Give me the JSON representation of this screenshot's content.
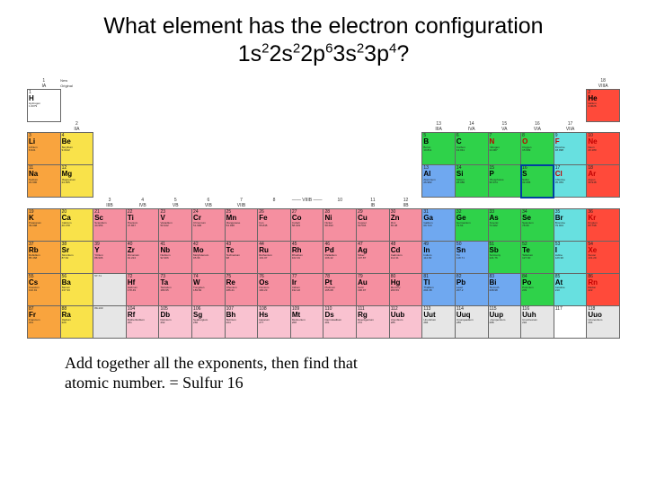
{
  "title_parts": {
    "line1": "What element has the electron configuration",
    "config": [
      {
        "b": "1s",
        "s": "2"
      },
      {
        "b": "2s",
        "s": "2"
      },
      {
        "b": "2p",
        "s": "6"
      },
      {
        "b": "3s",
        "s": "2"
      },
      {
        "b": "3p",
        "s": "4"
      },
      {
        "b": "?",
        "s": ""
      }
    ]
  },
  "answer": {
    "line1": "Add together all the exponents, then find that",
    "line2": "atomic number. = Sulfur 16"
  },
  "colors": {
    "orange": "#f9a43e",
    "yellow": "#f9e24a",
    "pink": "#f58fa0",
    "green": "#2fd24a",
    "cyan": "#67e0e0",
    "red": "#ff4a3a",
    "blue": "#6fa8f0",
    "white": "#ffffff",
    "grey": "#e6e6e6",
    "lpink": "#f9c2d0"
  },
  "group_top_labels": [
    "1\nIA",
    "",
    "",
    "",
    "",
    "",
    "",
    "",
    "",
    "",
    "",
    "",
    "",
    "",
    "",
    "",
    "",
    "18\nVIIIA"
  ],
  "group_mid_labels": {
    "row2": {
      "2": "2\nIIA",
      "13": "13\nIIIA",
      "14": "14\nIVA",
      "15": "15\nVA",
      "16": "16\nVIA",
      "17": "17\nVIIA"
    },
    "row4": {
      "3": "3\nIIIB",
      "4": "4\nIVB",
      "5": "5\nVB",
      "6": "6\nVIB",
      "7": "7\nVIIB",
      "8": "8",
      "9": "—— VIIIB ——",
      "10": "10",
      "11": "11\nIB",
      "12": "12\nIIB"
    }
  },
  "legend": {
    "new": "New",
    "orig": "Original"
  },
  "elements": {
    "r1": [
      {
        "n": "1",
        "sym": "H",
        "name": "Hydrogen",
        "mass": "1.0079",
        "c": "white"
      },
      null,
      null,
      null,
      null,
      null,
      null,
      null,
      null,
      null,
      null,
      null,
      null,
      null,
      null,
      null,
      null,
      {
        "n": "2",
        "sym": "He",
        "name": "Helium",
        "mass": "4.0026",
        "c": "red"
      }
    ],
    "r2": [
      {
        "n": "3",
        "sym": "Li",
        "name": "Lithium",
        "mass": "6.941",
        "c": "orange"
      },
      {
        "n": "4",
        "sym": "Be",
        "name": "Beryllium",
        "mass": "9.0122",
        "c": "yellow"
      },
      null,
      null,
      null,
      null,
      null,
      null,
      null,
      null,
      null,
      null,
      {
        "n": "5",
        "sym": "B",
        "name": "Boron",
        "mass": "10.811",
        "c": "green"
      },
      {
        "n": "6",
        "sym": "C",
        "name": "Carbon",
        "mass": "12.011",
        "c": "green"
      },
      {
        "n": "7",
        "sym": "N",
        "name": "Nitrogen",
        "mass": "14.007",
        "c": "green",
        "tx": "red"
      },
      {
        "n": "8",
        "sym": "O",
        "name": "Oxygen",
        "mass": "15.999",
        "c": "green",
        "tx": "red"
      },
      {
        "n": "9",
        "sym": "F",
        "name": "Fluorine",
        "mass": "18.998",
        "c": "cyan",
        "tx": "red"
      },
      {
        "n": "10",
        "sym": "Ne",
        "name": "Neon",
        "mass": "20.180",
        "c": "red",
        "tx": "red"
      }
    ],
    "r3": [
      {
        "n": "11",
        "sym": "Na",
        "name": "Sodium",
        "mass": "22.990",
        "c": "orange"
      },
      {
        "n": "12",
        "sym": "Mg",
        "name": "Magnesium",
        "mass": "24.305",
        "c": "yellow"
      },
      null,
      null,
      null,
      null,
      null,
      null,
      null,
      null,
      null,
      null,
      {
        "n": "13",
        "sym": "Al",
        "name": "Aluminum",
        "mass": "26.982",
        "c": "blue"
      },
      {
        "n": "14",
        "sym": "Si",
        "name": "Silicon",
        "mass": "28.086",
        "c": "green"
      },
      {
        "n": "15",
        "sym": "P",
        "name": "Phosphorus",
        "mass": "30.974",
        "c": "green"
      },
      {
        "n": "16",
        "sym": "S",
        "name": "Sulfur",
        "mass": "32.065",
        "c": "green",
        "hl": true
      },
      {
        "n": "17",
        "sym": "Cl",
        "name": "Chlorine",
        "mass": "35.453",
        "c": "cyan",
        "tx": "red"
      },
      {
        "n": "18",
        "sym": "Ar",
        "name": "Argon",
        "mass": "39.948",
        "c": "red",
        "tx": "red"
      }
    ],
    "r4": [
      {
        "n": "19",
        "sym": "K",
        "name": "Potassium",
        "mass": "39.098",
        "c": "orange"
      },
      {
        "n": "20",
        "sym": "Ca",
        "name": "Calcium",
        "mass": "40.078",
        "c": "yellow"
      },
      {
        "n": "21",
        "sym": "Sc",
        "name": "Scandium",
        "mass": "44.956",
        "c": "pink"
      },
      {
        "n": "22",
        "sym": "Ti",
        "name": "Titanium",
        "mass": "47.867",
        "c": "pink"
      },
      {
        "n": "23",
        "sym": "V",
        "name": "Vanadium",
        "mass": "50.942",
        "c": "pink"
      },
      {
        "n": "24",
        "sym": "Cr",
        "name": "Chromium",
        "mass": "51.996",
        "c": "pink"
      },
      {
        "n": "25",
        "sym": "Mn",
        "name": "Manganese",
        "mass": "54.938",
        "c": "pink"
      },
      {
        "n": "26",
        "sym": "Fe",
        "name": "Iron",
        "mass": "55.845",
        "c": "pink"
      },
      {
        "n": "27",
        "sym": "Co",
        "name": "Cobalt",
        "mass": "58.933",
        "c": "pink"
      },
      {
        "n": "28",
        "sym": "Ni",
        "name": "Nickel",
        "mass": "58.693",
        "c": "pink"
      },
      {
        "n": "29",
        "sym": "Cu",
        "name": "Copper",
        "mass": "63.546",
        "c": "pink"
      },
      {
        "n": "30",
        "sym": "Zn",
        "name": "Zinc",
        "mass": "65.38",
        "c": "pink"
      },
      {
        "n": "31",
        "sym": "Ga",
        "name": "Gallium",
        "mass": "69.723",
        "c": "blue"
      },
      {
        "n": "32",
        "sym": "Ge",
        "name": "Germanium",
        "mass": "72.64",
        "c": "green"
      },
      {
        "n": "33",
        "sym": "As",
        "name": "Arsenic",
        "mass": "74.922",
        "c": "green"
      },
      {
        "n": "34",
        "sym": "Se",
        "name": "Selenium",
        "mass": "78.96",
        "c": "green"
      },
      {
        "n": "35",
        "sym": "Br",
        "name": "Bromine",
        "mass": "79.904",
        "c": "cyan"
      },
      {
        "n": "36",
        "sym": "Kr",
        "name": "Krypton",
        "mass": "83.798",
        "c": "red",
        "tx": "red"
      }
    ],
    "r5": [
      {
        "n": "37",
        "sym": "Rb",
        "name": "Rubidium",
        "mass": "85.468",
        "c": "orange"
      },
      {
        "n": "38",
        "sym": "Sr",
        "name": "Strontium",
        "mass": "87.62",
        "c": "yellow"
      },
      {
        "n": "39",
        "sym": "Y",
        "name": "Yttrium",
        "mass": "88.906",
        "c": "pink"
      },
      {
        "n": "40",
        "sym": "Zr",
        "name": "Zirconium",
        "mass": "91.224",
        "c": "pink"
      },
      {
        "n": "41",
        "sym": "Nb",
        "name": "Niobium",
        "mass": "92.906",
        "c": "pink"
      },
      {
        "n": "42",
        "sym": "Mo",
        "name": "Molybdenum",
        "mass": "95.96",
        "c": "pink"
      },
      {
        "n": "43",
        "sym": "Tc",
        "name": "Technetium",
        "mass": "98",
        "c": "pink"
      },
      {
        "n": "44",
        "sym": "Ru",
        "name": "Ruthenium",
        "mass": "101.07",
        "c": "pink"
      },
      {
        "n": "45",
        "sym": "Rh",
        "name": "Rhodium",
        "mass": "102.91",
        "c": "pink"
      },
      {
        "n": "46",
        "sym": "Pd",
        "name": "Palladium",
        "mass": "106.42",
        "c": "pink"
      },
      {
        "n": "47",
        "sym": "Ag",
        "name": "Silver",
        "mass": "107.87",
        "c": "pink"
      },
      {
        "n": "48",
        "sym": "Cd",
        "name": "Cadmium",
        "mass": "112.41",
        "c": "pink"
      },
      {
        "n": "49",
        "sym": "In",
        "name": "Indium",
        "mass": "114.82",
        "c": "blue"
      },
      {
        "n": "50",
        "sym": "Sn",
        "name": "Tin",
        "mass": "118.71",
        "c": "blue"
      },
      {
        "n": "51",
        "sym": "Sb",
        "name": "Antimony",
        "mass": "121.76",
        "c": "green"
      },
      {
        "n": "52",
        "sym": "Te",
        "name": "Tellurium",
        "mass": "127.60",
        "c": "green"
      },
      {
        "n": "53",
        "sym": "I",
        "name": "Iodine",
        "mass": "126.90",
        "c": "cyan"
      },
      {
        "n": "54",
        "sym": "Xe",
        "name": "Xenon",
        "mass": "131.29",
        "c": "red",
        "tx": "red"
      }
    ],
    "r6": [
      {
        "n": "55",
        "sym": "Cs",
        "name": "Caesium",
        "mass": "132.91",
        "c": "orange"
      },
      {
        "n": "56",
        "sym": "Ba",
        "name": "Barium",
        "mass": "137.33",
        "c": "yellow"
      },
      {
        "n": "",
        "sym": "",
        "name": "57-71",
        "mass": "",
        "c": "grey"
      },
      {
        "n": "72",
        "sym": "Hf",
        "name": "Hafnium",
        "mass": "178.49",
        "c": "pink"
      },
      {
        "n": "73",
        "sym": "Ta",
        "name": "Tantalum",
        "mass": "180.95",
        "c": "pink"
      },
      {
        "n": "74",
        "sym": "W",
        "name": "Tungsten",
        "mass": "183.84",
        "c": "pink"
      },
      {
        "n": "75",
        "sym": "Re",
        "name": "Rhenium",
        "mass": "186.21",
        "c": "pink"
      },
      {
        "n": "76",
        "sym": "Os",
        "name": "Osmium",
        "mass": "190.23",
        "c": "pink"
      },
      {
        "n": "77",
        "sym": "Ir",
        "name": "Iridium",
        "mass": "192.22",
        "c": "pink"
      },
      {
        "n": "78",
        "sym": "Pt",
        "name": "Platinum",
        "mass": "195.08",
        "c": "pink"
      },
      {
        "n": "79",
        "sym": "Au",
        "name": "Gold",
        "mass": "196.97",
        "c": "pink"
      },
      {
        "n": "80",
        "sym": "Hg",
        "name": "Mercury",
        "mass": "200.59",
        "c": "pink"
      },
      {
        "n": "81",
        "sym": "Tl",
        "name": "Thallium",
        "mass": "204.38",
        "c": "blue"
      },
      {
        "n": "82",
        "sym": "Pb",
        "name": "Lead",
        "mass": "207.2",
        "c": "blue"
      },
      {
        "n": "83",
        "sym": "Bi",
        "name": "Bismuth",
        "mass": "208.98",
        "c": "blue"
      },
      {
        "n": "84",
        "sym": "Po",
        "name": "Polonium",
        "mass": "209",
        "c": "green"
      },
      {
        "n": "85",
        "sym": "At",
        "name": "Astatine",
        "mass": "210",
        "c": "cyan"
      },
      {
        "n": "86",
        "sym": "Rn",
        "name": "Radon",
        "mass": "222",
        "c": "red",
        "tx": "red"
      }
    ],
    "r7": [
      {
        "n": "87",
        "sym": "Fr",
        "name": "Francium",
        "mass": "223",
        "c": "orange"
      },
      {
        "n": "88",
        "sym": "Ra",
        "name": "Radium",
        "mass": "226",
        "c": "yellow"
      },
      {
        "n": "",
        "sym": "",
        "name": "89-103",
        "mass": "",
        "c": "grey"
      },
      {
        "n": "104",
        "sym": "Rf",
        "name": "Rutherfordium",
        "mass": "261",
        "c": "lpink"
      },
      {
        "n": "105",
        "sym": "Db",
        "name": "Dubnium",
        "mass": "262",
        "c": "lpink"
      },
      {
        "n": "106",
        "sym": "Sg",
        "name": "Seaborgium",
        "mass": "266",
        "c": "lpink"
      },
      {
        "n": "107",
        "sym": "Bh",
        "name": "Bohrium",
        "mass": "264",
        "c": "lpink"
      },
      {
        "n": "108",
        "sym": "Hs",
        "name": "Hassium",
        "mass": "277",
        "c": "lpink"
      },
      {
        "n": "109",
        "sym": "Mt",
        "name": "Meitnerium",
        "mass": "268",
        "c": "lpink"
      },
      {
        "n": "110",
        "sym": "Ds",
        "name": "Darmstadtium",
        "mass": "281",
        "c": "lpink"
      },
      {
        "n": "111",
        "sym": "Rg",
        "name": "Roentgenium",
        "mass": "272",
        "c": "lpink"
      },
      {
        "n": "112",
        "sym": "Uub",
        "name": "Ununbium",
        "mass": "285",
        "c": "lpink"
      },
      {
        "n": "113",
        "sym": "Uut",
        "name": "Ununtrium",
        "mass": "284",
        "c": "grey"
      },
      {
        "n": "114",
        "sym": "Uuq",
        "name": "Ununquadium",
        "mass": "289",
        "c": "grey"
      },
      {
        "n": "115",
        "sym": "Uup",
        "name": "Ununpentium",
        "mass": "288",
        "c": "grey"
      },
      {
        "n": "116",
        "sym": "Uuh",
        "name": "Ununhexium",
        "mass": "292",
        "c": "grey"
      },
      {
        "n": "117",
        "sym": "",
        "name": "",
        "mass": "",
        "c": "white"
      },
      {
        "n": "118",
        "sym": "Uuo",
        "name": "Ununoctium",
        "mass": "294",
        "c": "grey"
      }
    ]
  }
}
